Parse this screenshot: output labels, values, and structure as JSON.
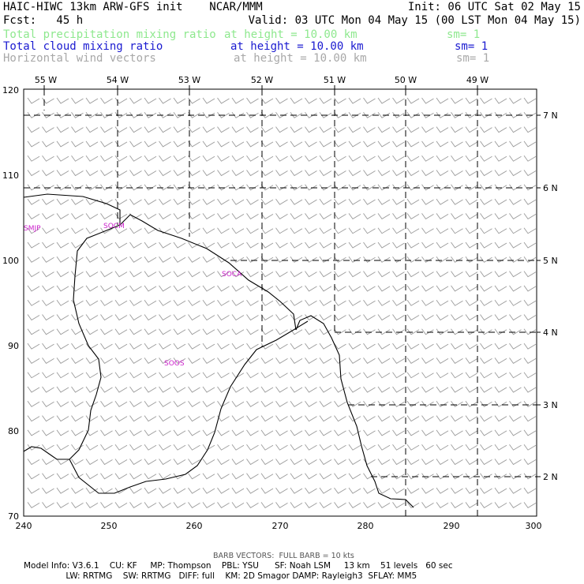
{
  "header": {
    "model": "HAIC-HIWC 13km ARW-GFS init    NCAR/MMM",
    "init": "Init: 06 UTC Sat 02 May 15",
    "fcst": "Fcst:   45 h",
    "valid": "Valid: 03 UTC Mon 04 May 15 (00 LST Mon 04 May 15)",
    "fields": [
      {
        "name": "Total precipitation mixing ratio",
        "height": "at height = 10.00 km",
        "sm": "sm= 1",
        "color": "#8ee88e"
      },
      {
        "name": "Total cloud mixing ratio",
        "height": "at height = 10.00 km",
        "sm": "sm= 1",
        "color": "#1a1ad0"
      },
      {
        "name": "Horizontal wind vectors",
        "height": "at height = 10.00 km",
        "sm": "sm= 1",
        "color": "#a8a8a8"
      }
    ]
  },
  "axes": {
    "x_ticks": [
      "240",
      "250",
      "260",
      "270",
      "280",
      "290",
      "300"
    ],
    "y_ticks": [
      "70",
      "80",
      "90",
      "100",
      "110",
      "120"
    ],
    "lon_labels": [
      "55 W",
      "54 W",
      "53 W",
      "52 W",
      "51 W",
      "50 W",
      "49 W"
    ],
    "lat_labels": [
      "7 N",
      "6 N",
      "5 N",
      "4 N",
      "3 N",
      "2 N"
    ]
  },
  "stations": [
    "SMJP",
    "SOCM",
    "SOCA",
    "SOOS"
  ],
  "footer": {
    "barb_note": "BARB VECTORS:  FULL BARB = 10 kts",
    "line1": "Model Info: V3.6.1    CU: KF     MP: Thompson    PBL: YSU      SF: Noah LSM     13 km    51 levels   60 sec",
    "line2": "                LW: RRTMG    SW: RRTMG   DIFF: full    KM: 2D Smagor DAMP: Rayleigh3  SFLAY: MM5"
  }
}
